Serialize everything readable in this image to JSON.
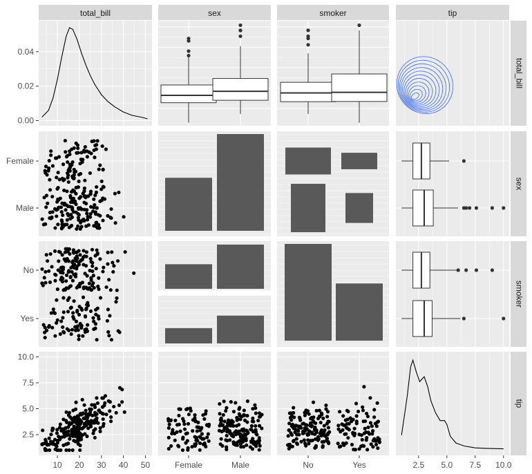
{
  "chart_data": {
    "type": "pairs",
    "title": "",
    "variables": [
      "total_bill",
      "sex",
      "smoker",
      "tip"
    ],
    "strip_labels": {
      "columns": [
        "total_bill",
        "sex",
        "smoker",
        "tip"
      ],
      "rows": [
        "total_bill",
        "sex",
        "smoker",
        "tip"
      ]
    },
    "axes": {
      "total_bill": {
        "ticks": [
          "10",
          "20",
          "30",
          "40",
          "50"
        ],
        "tick_values": [
          10,
          20,
          30,
          40,
          50
        ],
        "range": [
          1.5,
          53
        ]
      },
      "tip": {
        "ticks": [
          "2.5",
          "5.0",
          "7.5",
          "10.0"
        ],
        "tick_values": [
          2.5,
          5.0,
          7.5,
          10.0
        ],
        "range": [
          0.5,
          10.5
        ]
      },
      "density_y": {
        "ticks": [
          "0.00",
          "0.02",
          "0.04"
        ],
        "tick_values": [
          0,
          0.02,
          0.04
        ],
        "range": [
          -0.003,
          0.058
        ]
      },
      "sex": {
        "ticks": [
          "Female",
          "Male"
        ]
      },
      "smoker": {
        "ticks": [
          "No",
          "Yes"
        ]
      }
    },
    "panels": {
      "density_total_bill": {
        "x": [
          3,
          6,
          8,
          10,
          12,
          14,
          15.5,
          17,
          19,
          21,
          23,
          25,
          27,
          30,
          33,
          36,
          40,
          44,
          48,
          51
        ],
        "y": [
          0.002,
          0.006,
          0.013,
          0.024,
          0.037,
          0.049,
          0.054,
          0.053,
          0.047,
          0.039,
          0.032,
          0.026,
          0.021,
          0.015,
          0.011,
          0.008,
          0.005,
          0.003,
          0.002,
          0.001
        ]
      },
      "box_total_bill_by_sex": [
        {
          "group": "Female",
          "min": 3,
          "q1": 12.8,
          "median": 16.4,
          "q3": 21.5,
          "max": 35.8,
          "outliers": [
            44.3,
            43.1,
            38.1,
            35.9
          ]
        },
        {
          "group": "Male",
          "min": 7.3,
          "q1": 14,
          "median": 18.4,
          "q3": 24.7,
          "max": 40.5,
          "outliers": [
            50.8,
            48.3,
            48.2,
            45.4
          ]
        }
      ],
      "box_total_bill_by_smoker": [
        {
          "group": "No",
          "min": 7.3,
          "q1": 13.3,
          "median": 17.6,
          "q3": 22.8,
          "max": 37,
          "outliers": [
            48.3,
            45.4,
            44.3,
            41.2
          ]
        },
        {
          "group": "Yes",
          "min": 3,
          "q1": 13.4,
          "median": 17.9,
          "q3": 26.9,
          "max": 48.2,
          "outliers": [
            50.8
          ]
        }
      ],
      "box_tip_by_sex": [
        {
          "group": "Female",
          "min": 1,
          "q1": 2,
          "median": 2.75,
          "q3": 3.5,
          "max": 5.2,
          "outliers": [
            6.5
          ]
        },
        {
          "group": "Male",
          "min": 1,
          "q1": 2,
          "median": 3,
          "q3": 3.8,
          "max": 6,
          "outliers": [
            6.5,
            6.7,
            7,
            7.6,
            9,
            10
          ]
        }
      ],
      "box_tip_by_smoker": [
        {
          "group": "No",
          "min": 1,
          "q1": 2,
          "median": 2.75,
          "q3": 3.5,
          "max": 5.9,
          "outliers": [
            6,
            6.7,
            7.6,
            9
          ]
        },
        {
          "group": "Yes",
          "min": 1,
          "q1": 2,
          "median": 3,
          "q3": 3.7,
          "max": 6.2,
          "outliers": [
            6.5,
            10
          ]
        }
      ],
      "density_tip": {
        "x": [
          1,
          1.5,
          1.8,
          2,
          2.3,
          2.6,
          3,
          3.3,
          3.6,
          4,
          4.4,
          4.8,
          5,
          5.3,
          5.8,
          6.5,
          7.5,
          8.5,
          10
        ],
        "y": [
          0.15,
          0.55,
          0.85,
          0.92,
          0.8,
          0.7,
          0.75,
          0.65,
          0.5,
          0.38,
          0.3,
          0.3,
          0.26,
          0.14,
          0.07,
          0.04,
          0.02,
          0.015,
          0.01
        ]
      },
      "bars_sex_by_sex": [
        {
          "group": "Female",
          "count": 87
        },
        {
          "group": "Male",
          "count": 157
        }
      ],
      "mosaic_sex_by_smoker": {
        "No": {
          "Female": 54,
          "Male": 97
        },
        "Yes": {
          "Female": 33,
          "Male": 60
        }
      },
      "bars_sex_by_smoker": {
        "No": {
          "Female": 54,
          "Male": 97
        },
        "Yes": {
          "Female": 33,
          "Male": 60
        }
      },
      "bars_smoker_by_smoker": [
        {
          "group": "No",
          "count": 151
        },
        {
          "group": "Yes",
          "count": 93
        }
      ]
    },
    "grid": true,
    "legend": "none"
  }
}
